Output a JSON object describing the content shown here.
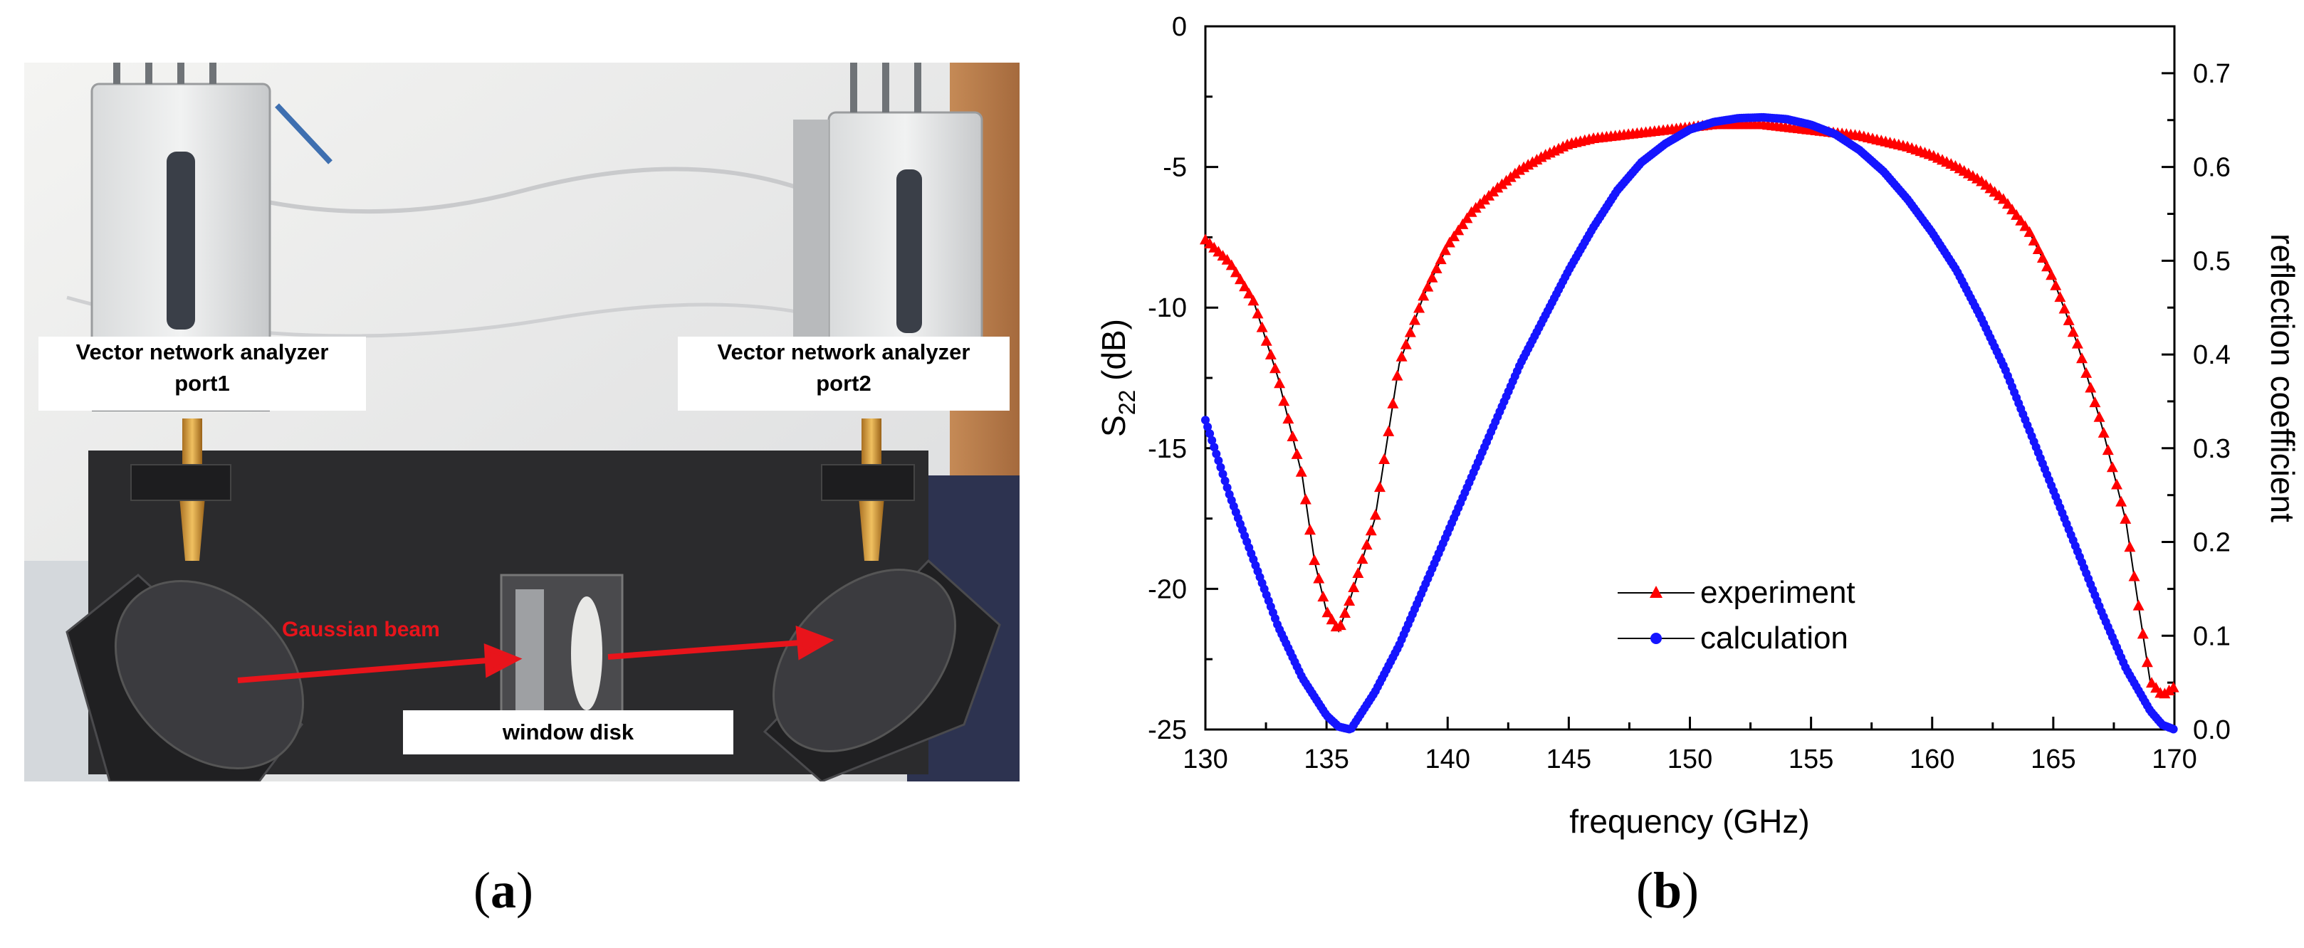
{
  "panel_a": {
    "caption": "a",
    "labels": {
      "vna_port1_line1": "Vector network analyzer",
      "vna_port1_line2": "port1",
      "vna_port2_line1": "Vector network analyzer",
      "vna_port2_line2": "port2",
      "gaussian_beam": "Gaussian beam",
      "window_disk": "window disk"
    }
  },
  "panel_b": {
    "caption": "b"
  },
  "colors": {
    "experiment": "#ff0000",
    "calculation": "#1515ff",
    "beam_arrow": "#e8141b"
  },
  "chart_data": {
    "type": "scatter",
    "xlabel": "frequency (GHz)",
    "ylabel_main": "S",
    "ylabel_sub": "22",
    "ylabel_unit": " (dB)",
    "y2label": "reflection coefficient",
    "xlim": [
      130,
      170
    ],
    "ylim": [
      -25,
      0
    ],
    "y2lim": [
      0.0,
      0.75
    ],
    "x_ticks": [
      "130",
      "135",
      "140",
      "145",
      "150",
      "155",
      "160",
      "165",
      "170"
    ],
    "y_ticks": [
      "0",
      "-5",
      "-10",
      "-15",
      "-20",
      "-25"
    ],
    "y2_ticks": [
      "0.0",
      "0.1",
      "0.2",
      "0.3",
      "0.4",
      "0.5",
      "0.6",
      "0.7"
    ],
    "legend_position": "center-bottom",
    "series": [
      {
        "name": "experiment",
        "axis": "left",
        "marker": "triangle",
        "x": [
          130,
          131,
          132,
          133,
          134,
          134.5,
          135,
          135.5,
          136,
          137,
          138,
          139,
          140,
          141,
          142,
          143,
          144,
          145,
          146,
          147,
          148,
          149,
          150,
          151,
          152,
          153,
          154,
          155,
          156,
          157,
          158,
          159,
          160,
          161,
          162,
          163,
          164,
          165,
          166,
          167,
          168,
          168.5,
          169,
          169.5,
          170
        ],
        "y": [
          -7.6,
          -8.4,
          -9.8,
          -12.5,
          -16.0,
          -19.0,
          -20.8,
          -21.5,
          -20.3,
          -17.5,
          -12.0,
          -9.6,
          -7.8,
          -6.6,
          -5.8,
          -5.1,
          -4.6,
          -4.2,
          -4.0,
          -3.9,
          -3.8,
          -3.7,
          -3.6,
          -3.5,
          -3.5,
          -3.5,
          -3.6,
          -3.7,
          -3.8,
          -3.9,
          -4.1,
          -4.3,
          -4.6,
          -5.0,
          -5.5,
          -6.2,
          -7.3,
          -9.0,
          -11.3,
          -14.2,
          -17.6,
          -20.5,
          -23.3,
          -23.8,
          -23.5
        ]
      },
      {
        "name": "calculation",
        "axis": "right",
        "marker": "circle",
        "x": [
          130,
          131,
          132,
          133,
          134,
          135,
          135.5,
          136,
          137,
          138,
          139,
          140,
          141,
          142,
          143,
          144,
          145,
          146,
          147,
          148,
          149,
          150,
          151,
          152,
          153,
          154,
          155,
          156,
          157,
          158,
          159,
          160,
          161,
          162,
          163,
          164,
          165,
          166,
          167,
          168,
          169,
          169.5,
          170
        ],
        "y": [
          0.33,
          0.25,
          0.18,
          0.11,
          0.055,
          0.015,
          0.003,
          0.0,
          0.04,
          0.09,
          0.15,
          0.21,
          0.27,
          0.33,
          0.39,
          0.44,
          0.49,
          0.535,
          0.575,
          0.605,
          0.625,
          0.64,
          0.648,
          0.652,
          0.653,
          0.651,
          0.645,
          0.635,
          0.618,
          0.595,
          0.565,
          0.53,
          0.49,
          0.44,
          0.385,
          0.32,
          0.255,
          0.19,
          0.125,
          0.065,
          0.02,
          0.005,
          0.0
        ]
      }
    ]
  }
}
